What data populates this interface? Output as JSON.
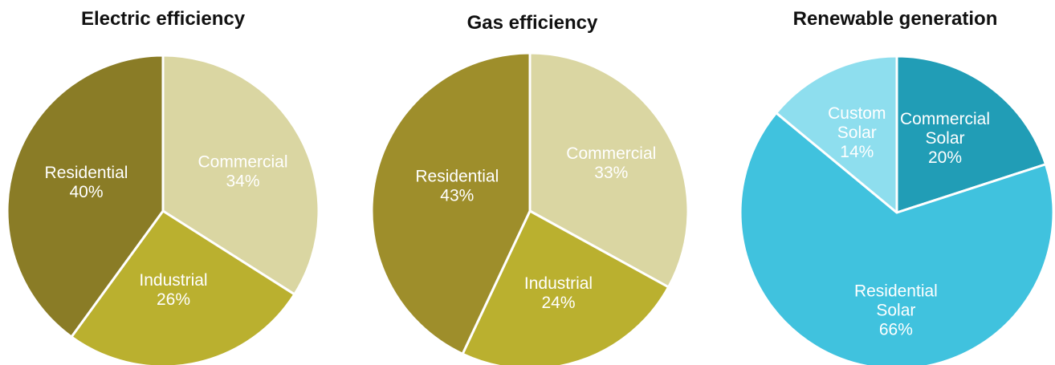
{
  "chart_data": [
    {
      "type": "pie",
      "title": "Electric efficiency",
      "start_angle_deg": 0,
      "direction": "clockwise",
      "slices": [
        {
          "label_lines": [
            "Commercial"
          ],
          "value": 34,
          "value_label": "34%",
          "color": "#dad6a2"
        },
        {
          "label_lines": [
            "Industrial"
          ],
          "value": 26,
          "value_label": "26%",
          "color": "#bab02f"
        },
        {
          "label_lines": [
            "Residential"
          ],
          "value": 40,
          "value_label": "40%",
          "color": "#8a7c26"
        }
      ]
    },
    {
      "type": "pie",
      "title": "Gas efficiency",
      "start_angle_deg": 0,
      "direction": "clockwise",
      "slices": [
        {
          "label_lines": [
            "Commercial"
          ],
          "value": 33,
          "value_label": "33%",
          "color": "#dad6a2"
        },
        {
          "label_lines": [
            "Industrial"
          ],
          "value": 24,
          "value_label": "24%",
          "color": "#bab02f"
        },
        {
          "label_lines": [
            "Residential"
          ],
          "value": 43,
          "value_label": "43%",
          "color": "#9e8e2b"
        }
      ]
    },
    {
      "type": "pie",
      "title": "Renewable generation",
      "start_angle_deg": 0,
      "direction": "clockwise",
      "slices": [
        {
          "label_lines": [
            "Commercial",
            "Solar"
          ],
          "value": 20,
          "value_label": "20%",
          "color": "#219db6"
        },
        {
          "label_lines": [
            "Residential",
            "Solar"
          ],
          "value": 66,
          "value_label": "66%",
          "color": "#40c2de"
        },
        {
          "label_lines": [
            "Custom",
            "Solar"
          ],
          "value": 14,
          "value_label": "14%",
          "color": "#8edeee"
        }
      ]
    }
  ]
}
